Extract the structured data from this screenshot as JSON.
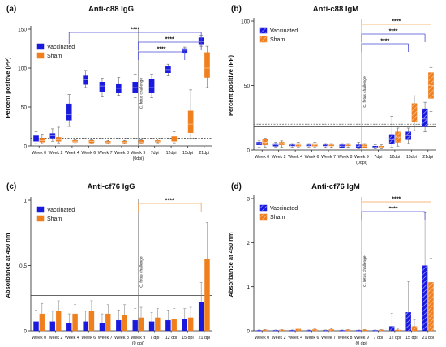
{
  "colors": {
    "vaccinated": "#1a1adf",
    "sham": "#f07f1e",
    "sig_blue": "#4a4ad8",
    "sig_orange": "#f0a050",
    "axis": "#222222"
  },
  "chart_data": [
    {
      "panel": "(a)",
      "title": "Anti-c88 IgG",
      "type": "box",
      "ylabel": "Percent positive (PP)",
      "ylim": [
        0,
        150
      ],
      "yticks": [
        0,
        50,
        100,
        150
      ],
      "categories": [
        "Week 0",
        "Week 2",
        "Week 4",
        "Week 6",
        "Week 7",
        "Week 8",
        "Week 9\n(0dpi)",
        "7dpi",
        "12dpi",
        "15dpi",
        "21dpi"
      ],
      "challenge_label": "C. fetus challenge",
      "challenge_index": 6,
      "cutoff_lines": [
        10
      ],
      "series": [
        {
          "name": "Vaccinated",
          "boxes": [
            [
              3,
              6,
              9,
              13,
              18
            ],
            [
              6,
              10,
              13,
              16,
              22
            ],
            [
              25,
              33,
              40,
              54,
              66
            ],
            [
              75,
              79,
              85,
              90,
              97
            ],
            [
              63,
              70,
              77,
              82,
              87
            ],
            [
              65,
              68,
              74,
              80,
              88
            ],
            [
              62,
              68,
              75,
              82,
              92
            ],
            [
              62,
              68,
              75,
              86,
              92
            ],
            [
              90,
              94,
              98,
              102,
              105
            ],
            [
              118,
              120,
              123,
              125,
              127
            ],
            [
              128,
              131,
              134,
              139,
              142
            ]
          ]
        },
        {
          "name": "Sham",
          "boxes": [
            [
              3,
              5,
              7,
              10,
              15
            ],
            [
              4,
              6,
              8,
              11,
              24
            ],
            [
              3,
              5,
              6,
              7,
              8
            ],
            [
              3,
              4,
              6,
              7,
              8
            ],
            [
              3,
              4,
              5,
              6,
              7
            ],
            [
              3,
              4,
              5,
              6,
              7
            ],
            [
              3,
              4,
              5,
              7,
              8
            ],
            [
              4,
              5,
              6,
              7,
              9
            ],
            [
              4,
              6,
              9,
              12,
              18
            ],
            [
              10,
              17,
              28,
              45,
              72
            ],
            [
              75,
              88,
              100,
              120,
              128
            ]
          ]
        }
      ],
      "significance": [
        {
          "from": 2,
          "to": 10,
          "label": "****"
        },
        {
          "from": 6,
          "to": 10,
          "label": "****"
        },
        {
          "from": 6,
          "to": 9,
          "label": "****"
        }
      ]
    },
    {
      "panel": "(b)",
      "title": "Anti-c88 IgM",
      "type": "box",
      "ylabel": "Percent positive (PP)",
      "ylim": [
        0,
        100
      ],
      "yticks": [
        0,
        50,
        100
      ],
      "categories": [
        "Week 0",
        "Week 2",
        "Week 4",
        "Week 6",
        "Week 7",
        "Week 8",
        "Week 9\n(0dpi)",
        "7dpi",
        "12dpi",
        "15dpi",
        "21dpi"
      ],
      "challenge_label": "C. fetus challenge",
      "challenge_index": 6,
      "cutoff_lines": [
        20,
        18
      ],
      "series": [
        {
          "name": "Vaccinated",
          "boxes": [
            [
              2,
              4,
              5,
              6,
              7
            ],
            [
              2,
              3,
              4,
              5,
              6
            ],
            [
              2,
              3,
              3,
              4,
              5
            ],
            [
              2,
              3,
              3,
              4,
              5
            ],
            [
              2,
              3,
              3,
              4,
              5
            ],
            [
              2,
              2,
              3,
              4,
              5
            ],
            [
              1,
              2,
              3,
              4,
              6
            ],
            [
              1,
              2,
              2,
              3,
              4
            ],
            [
              2,
              5,
              8,
              12,
              26
            ],
            [
              5,
              8,
              11,
              14,
              17
            ],
            [
              14,
              18,
              24,
              32,
              37
            ]
          ]
        },
        {
          "name": "Sham",
          "boxes": [
            [
              2,
              4,
              6,
              8,
              9
            ],
            [
              2,
              4,
              5,
              6,
              7
            ],
            [
              2,
              3,
              4,
              5,
              6
            ],
            [
              2,
              3,
              4,
              5,
              6
            ],
            [
              2,
              3,
              3,
              4,
              5
            ],
            [
              2,
              3,
              3,
              4,
              5
            ],
            [
              2,
              2,
              3,
              4,
              5
            ],
            [
              1,
              2,
              2,
              3,
              4
            ],
            [
              3,
              6,
              10,
              14,
              17
            ],
            [
              15,
              22,
              28,
              36,
              42
            ],
            [
              30,
              40,
              50,
              60,
              64
            ]
          ]
        }
      ],
      "significance": [
        {
          "from": 6,
          "to": 10,
          "label": "****"
        },
        {
          "from": 6,
          "to": 10,
          "label": "****"
        },
        {
          "from": 6,
          "to": 9,
          "label": "****"
        }
      ]
    },
    {
      "panel": "(c)",
      "title": "Anti-cf76 IgG",
      "type": "bar",
      "ylabel": "Absorbance at 450 nm",
      "ylim": [
        0,
        1.0
      ],
      "yticks": [
        0,
        0.5,
        1.0
      ],
      "categories": [
        "Week 0",
        "Week 2",
        "Week 4",
        "Week 6",
        "Week 7",
        "Week 8",
        "Week 9\n(0 dpi)",
        "7 dpi",
        "12 dpi",
        "15 dpi",
        "21 dpi"
      ],
      "challenge_label": "C. fetus challenge",
      "challenge_index": 6,
      "cutoff_lines": [
        0.27
      ],
      "series": [
        {
          "name": "Vaccinated",
          "values": [
            0.07,
            0.07,
            0.06,
            0.07,
            0.06,
            0.08,
            0.08,
            0.07,
            0.08,
            0.09,
            0.22
          ],
          "errors": [
            0.09,
            0.08,
            0.07,
            0.08,
            0.07,
            0.08,
            0.09,
            0.07,
            0.08,
            0.08,
            0.15
          ]
        },
        {
          "name": "Sham",
          "values": [
            0.13,
            0.15,
            0.13,
            0.15,
            0.13,
            0.12,
            0.1,
            0.1,
            0.09,
            0.1,
            0.55
          ],
          "errors": [
            0.08,
            0.08,
            0.07,
            0.08,
            0.07,
            0.08,
            0.08,
            0.07,
            0.08,
            0.08,
            0.28
          ]
        }
      ],
      "significance": [
        {
          "from": 6,
          "to": 10,
          "label": "****"
        }
      ]
    },
    {
      "panel": "(d)",
      "title": "Anti-cf76 IgM",
      "type": "bar",
      "ylabel": "Absorbance at 450 nm",
      "ylim": [
        0,
        3
      ],
      "yticks": [
        0,
        1,
        2,
        3
      ],
      "categories": [
        "Week 0",
        "Week 2",
        "Week 4",
        "Week 6",
        "Week 7",
        "Week 8",
        "Week 9\n(0 dpi)",
        "7 dpi",
        "12 dpi",
        "15 dpi",
        "21 dpi"
      ],
      "challenge_label": "C. fetus challenge",
      "challenge_index": 6,
      "cutoff_lines": [],
      "series": [
        {
          "name": "Vaccinated",
          "values": [
            0.01,
            0.01,
            0.01,
            0.01,
            0.01,
            0.01,
            0.01,
            0.01,
            0.1,
            0.42,
            1.48
          ],
          "errors": [
            0.01,
            0.01,
            0.01,
            0.01,
            0.01,
            0.01,
            0.01,
            0.01,
            0.3,
            0.7,
            1.2
          ]
        },
        {
          "name": "Sham",
          "values": [
            0.02,
            0.02,
            0.04,
            0.03,
            0.03,
            0.02,
            0.02,
            0.02,
            0.02,
            0.1,
            1.1
          ],
          "errors": [
            0.01,
            0.01,
            0.02,
            0.02,
            0.02,
            0.01,
            0.01,
            0.01,
            0.02,
            0.15,
            0.55
          ]
        }
      ],
      "significance": [
        {
          "from": 6,
          "to": 10,
          "label": "****"
        },
        {
          "from": 6,
          "to": 10,
          "label": "****"
        }
      ]
    }
  ]
}
